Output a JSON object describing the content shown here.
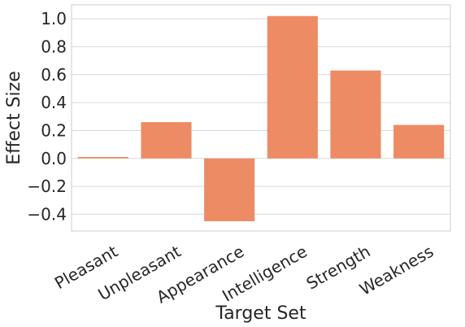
{
  "chart_data": {
    "type": "bar",
    "categories": [
      "Pleasant",
      "Unpleasant",
      "Appearance",
      "Intelligence",
      "Strength",
      "Weakness"
    ],
    "values": [
      0.01,
      0.26,
      -0.45,
      1.02,
      0.63,
      0.24
    ],
    "xlabel": "Target Set",
    "ylabel": "Effect Size",
    "ylim": [
      -0.52,
      1.1
    ],
    "yticks": [
      -0.4,
      -0.2,
      0.0,
      0.2,
      0.4,
      0.6,
      0.8,
      1.0
    ],
    "ytick_labels": [
      "−0.4",
      "−0.2",
      "0.0",
      "0.2",
      "0.4",
      "0.6",
      "0.8",
      "1.0"
    ],
    "grid": true,
    "bar_color": "#ED8B65",
    "grid_color": "#D9D9D9"
  }
}
